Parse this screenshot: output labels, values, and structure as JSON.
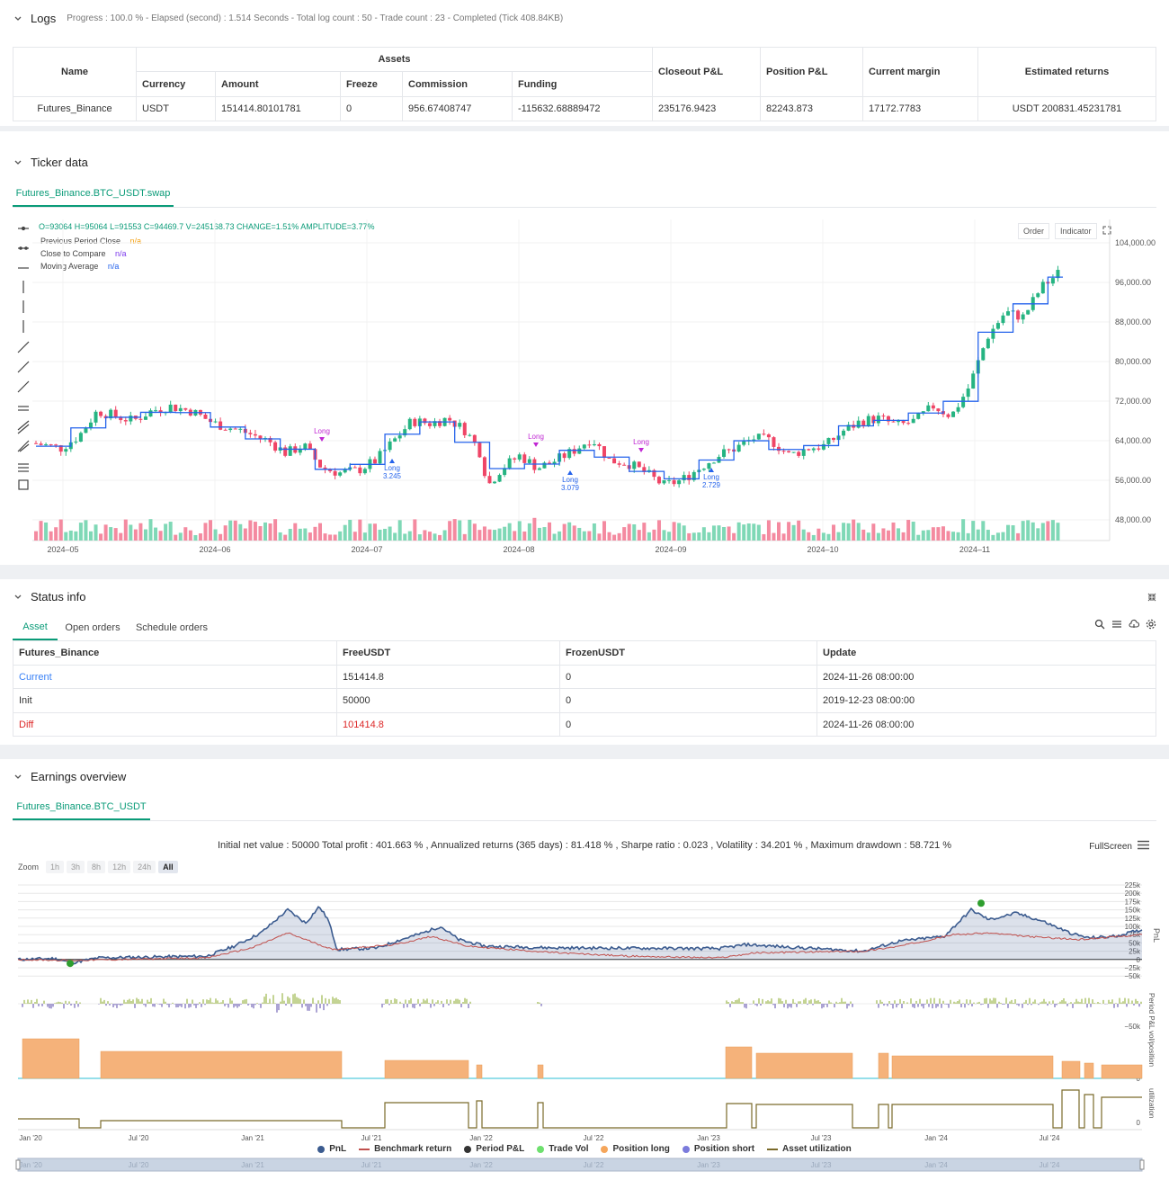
{
  "logs": {
    "title": "Logs",
    "summary": "Progress : 100.0 % - Elapsed (second) : 1.514  Seconds - Total log count : 50 - Trade count : 23 - Completed (Tick 408.84KB)",
    "table": {
      "name_header": "Name",
      "assets_header": "Assets",
      "sub_headers": [
        "Currency",
        "Amount",
        "Freeze",
        "Commission",
        "Funding"
      ],
      "right_headers": [
        "Closeout P&L",
        "Position P&L",
        "Current margin",
        "Estimated returns"
      ],
      "row": [
        "Futures_Binance",
        "USDT",
        "151414.80101781",
        "0",
        "956.67408747",
        "-115632.68889472",
        "235176.9423",
        "82243.873",
        "17172.7783",
        "USDT 200831.45231781"
      ]
    }
  },
  "ticker": {
    "title": "Ticker data",
    "tab": "Futures_Binance.BTC_USDT.swap",
    "ohlc": "O=93064 H=95064 L=91553 C=94469.7 V=245168.73 CHANGE=1.51% AMPLITUDE=3.77%",
    "legend": [
      {
        "label": "Previous Period Close",
        "value": "n/a",
        "color": "#f59e0b"
      },
      {
        "label": "Close to Compare",
        "value": "n/a",
        "color": "#7c3aed"
      },
      {
        "label": "Moving Average",
        "value": "n/a",
        "color": "#2563eb"
      }
    ],
    "buttons": [
      "Order",
      "Indicator"
    ],
    "y_ticks": [
      "104,000.00",
      "96,000.00",
      "88,000.00",
      "80,000.00",
      "72,000.00",
      "64,000.00",
      "56,000.00",
      "48,000.00"
    ],
    "x_ticks": [
      "2024–05",
      "2024–06",
      "2024–07",
      "2024–08",
      "2024–09",
      "2024–10",
      "2024–11"
    ],
    "markers": {
      "long": "Long",
      "v1": "3.245",
      "v2": "3.079",
      "v3": "2.729"
    }
  },
  "status": {
    "title": "Status info",
    "tabs": [
      "Asset",
      "Open orders",
      "Schedule orders"
    ],
    "headers": [
      "Futures_Binance",
      "FreeUSDT",
      "FrozenUSDT",
      "Update"
    ],
    "rows": [
      {
        "label": "Current",
        "free": "151414.8",
        "frozen": "0",
        "update": "2024-11-26 08:00:00"
      },
      {
        "label": "Init",
        "free": "50000",
        "frozen": "0",
        "update": "2019-12-23 08:00:00"
      },
      {
        "label": "Diff",
        "free": "101414.8",
        "frozen": "0",
        "update": "2024-11-26 08:00:00"
      }
    ]
  },
  "earnings": {
    "title": "Earnings overview",
    "tab": "Futures_Binance.BTC_USDT",
    "summary": "Initial net value : 50000 Total profit : 401.663 % , Annualized returns (365 days) : 81.418 % , Sharpe ratio : 0.023 , Volatility : 34.201 % , Maximum drawdown : 58.721 %",
    "fullscreen": "FullScreen",
    "zoom_label": "Zoom",
    "zoom_options": [
      "1h",
      "3h",
      "8h",
      "12h",
      "24h",
      "All"
    ],
    "y_ticks": [
      "225k",
      "200k",
      "175k",
      "150k",
      "125k",
      "100k",
      "75k",
      "50k",
      "25k",
      "0",
      "−25k",
      "−50k"
    ],
    "pnl_axis": "PnL",
    "period_axis": "Period P&L",
    "period_tick": "−50k",
    "vol_axis": "vol/position",
    "vol_tick": "0",
    "util_axis": "utilization",
    "util_tick": "0",
    "x_ticks": [
      "Jan '20",
      "Jul '20",
      "Jan '21",
      "Jul '21",
      "Jan '22",
      "Jul '22",
      "Jan '23",
      "Jul '23",
      "Jan '24",
      "Jul '24"
    ],
    "legend": [
      {
        "label": "PnL",
        "color": "#3b5b8f",
        "kind": "dot"
      },
      {
        "label": "Benchmark return",
        "color": "#c0504d",
        "kind": "line"
      },
      {
        "label": "Period P&L",
        "color": "#333333",
        "kind": "dot"
      },
      {
        "label": "Trade Vol",
        "color": "#6ee06e",
        "kind": "dot"
      },
      {
        "label": "Position long",
        "color": "#f5a65b",
        "kind": "dot"
      },
      {
        "label": "Position short",
        "color": "#7b7bdc",
        "kind": "dot"
      },
      {
        "label": "Asset utilization",
        "color": "#7a6a2a",
        "kind": "line"
      }
    ]
  },
  "chart_data": [
    {
      "type": "candlestick",
      "ylim": [
        44000,
        106000
      ],
      "series": [
        {
          "name": "Moving Average",
          "color": "#2563eb"
        }
      ]
    },
    {
      "type": "line",
      "ylim": [
        -50000,
        225000
      ],
      "series": [
        {
          "name": "PnL",
          "color": "#3b5b8f"
        },
        {
          "name": "Benchmark return",
          "color": "#c0504d"
        }
      ]
    }
  ]
}
